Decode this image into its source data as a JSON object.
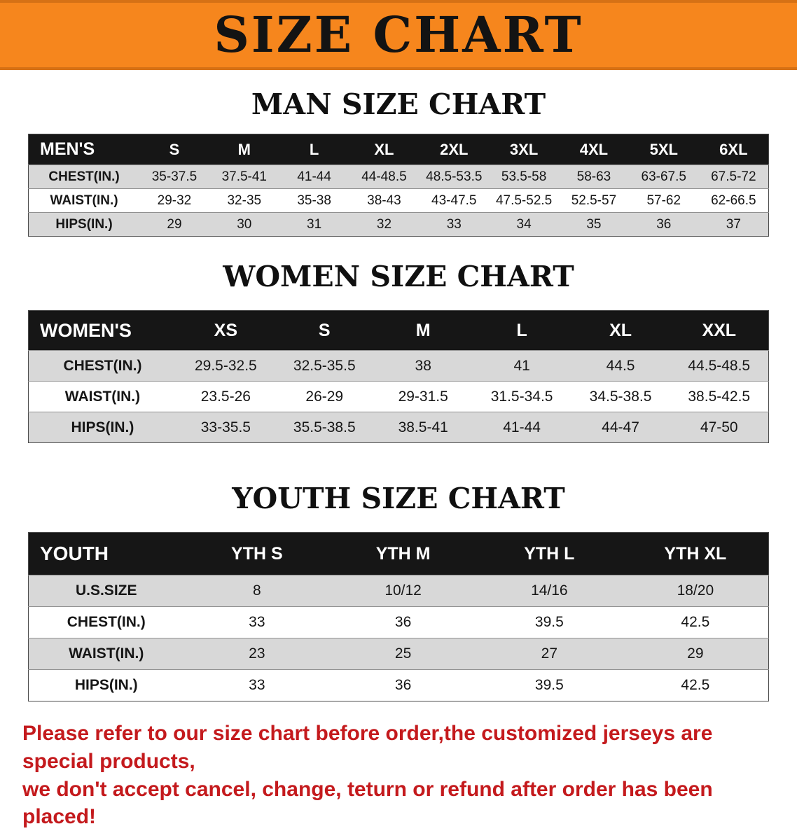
{
  "banner": {
    "title": "SIZE CHART"
  },
  "chart_data": [
    {
      "type": "table",
      "title": "MAN SIZE CHART",
      "columns": [
        "MEN'S",
        "S",
        "M",
        "L",
        "XL",
        "2XL",
        "3XL",
        "4XL",
        "5XL",
        "6XL"
      ],
      "rows": [
        [
          "CHEST(IN.)",
          "35-37.5",
          "37.5-41",
          "41-44",
          "44-48.5",
          "48.5-53.5",
          "53.5-58",
          "58-63",
          "63-67.5",
          "67.5-72"
        ],
        [
          "WAIST(IN.)",
          "29-32",
          "32-35",
          "35-38",
          "38-43",
          "43-47.5",
          "47.5-52.5",
          "52.5-57",
          "57-62",
          "62-66.5"
        ],
        [
          "HIPS(IN.)",
          "29",
          "30",
          "31",
          "32",
          "33",
          "34",
          "35",
          "36",
          "37"
        ]
      ]
    },
    {
      "type": "table",
      "title": "WOMEN SIZE CHART",
      "columns": [
        "WOMEN'S",
        "XS",
        "S",
        "M",
        "L",
        "XL",
        "XXL"
      ],
      "rows": [
        [
          "CHEST(IN.)",
          "29.5-32.5",
          "32.5-35.5",
          "38",
          "41",
          "44.5",
          "44.5-48.5"
        ],
        [
          "WAIST(IN.)",
          "23.5-26",
          "26-29",
          "29-31.5",
          "31.5-34.5",
          "34.5-38.5",
          "38.5-42.5"
        ],
        [
          "HIPS(IN.)",
          "33-35.5",
          "35.5-38.5",
          "38.5-41",
          "41-44",
          "44-47",
          "47-50"
        ]
      ]
    },
    {
      "type": "table",
      "title": "YOUTH SIZE CHART",
      "columns": [
        "YOUTH",
        "YTH S",
        "YTH M",
        "YTH L",
        "YTH XL"
      ],
      "rows": [
        [
          "U.S.SIZE",
          "8",
          "10/12",
          "14/16",
          "18/20"
        ],
        [
          "CHEST(IN.)",
          "33",
          "36",
          "39.5",
          "42.5"
        ],
        [
          "WAIST(IN.)",
          "23",
          "25",
          "27",
          "29"
        ],
        [
          "HIPS(IN.)",
          "33",
          "36",
          "39.5",
          "42.5"
        ]
      ]
    }
  ],
  "footer": {
    "line1": "Please refer to our size chart before order,the customized jerseys are special products,",
    "line2": "we don't accept cancel, change, teturn or refund after order has been placed!"
  },
  "colors": {
    "banner_bg": "#F6861D",
    "table_header_bg": "#161616",
    "row_shade": "#D8D8D8",
    "note_red": "#C41A1D"
  }
}
